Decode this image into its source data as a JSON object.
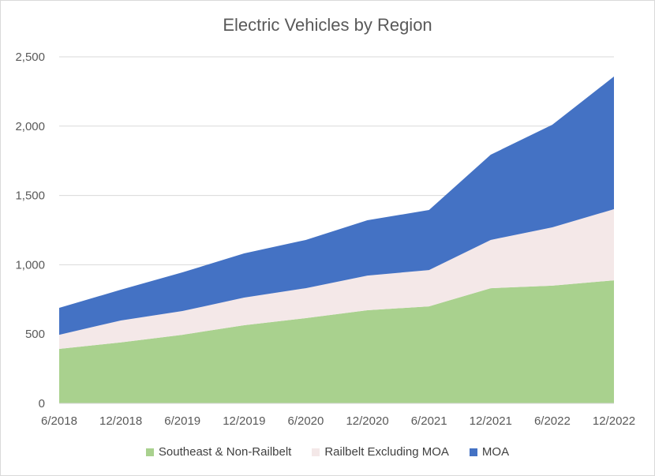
{
  "chart_data": {
    "type": "area",
    "stacked": true,
    "title": "Electric Vehicles by Region",
    "xlabel": "",
    "ylabel": "",
    "categories": [
      "6/2018",
      "12/2018",
      "6/2019",
      "12/2019",
      "6/2020",
      "12/2020",
      "6/2021",
      "12/2021",
      "6/2022",
      "12/2022"
    ],
    "ylim": [
      0,
      2500
    ],
    "yticks": [
      0,
      500,
      1000,
      1500,
      2000,
      2500
    ],
    "ytick_labels": [
      "0",
      "500",
      "1,000",
      "1,500",
      "2,000",
      "2,500"
    ],
    "grid": true,
    "legend_position": "bottom",
    "series": [
      {
        "name": "Southeast & Non-Railbelt",
        "color": "#a9d18e",
        "values": [
          393,
          440,
          495,
          564,
          615,
          672,
          700,
          831,
          849,
          888
        ]
      },
      {
        "name": "Railbelt Excluding MOA",
        "color": "#f4e8e8",
        "values": [
          102,
          158,
          171,
          199,
          216,
          250,
          262,
          348,
          421,
          513
        ]
      },
      {
        "name": "MOA",
        "color": "#4472c4",
        "values": [
          194,
          222,
          279,
          319,
          348,
          399,
          433,
          615,
          740,
          957
        ]
      }
    ]
  }
}
